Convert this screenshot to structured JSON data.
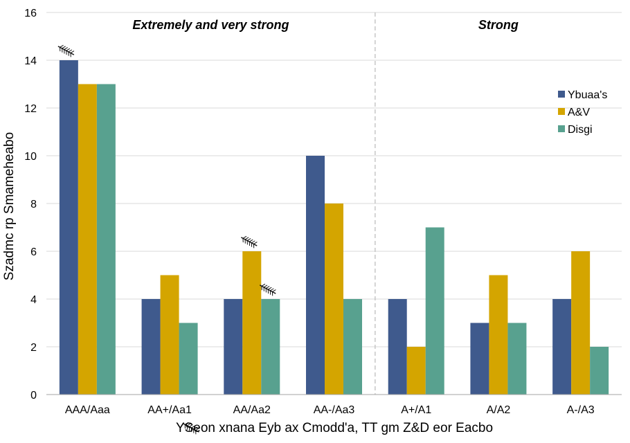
{
  "chart_data": {
    "type": "bar",
    "ylabel": "Szadmc rp Smameheabo",
    "xlabel": "YSeon xnana Eyb ax Cmodd'a, TT gm Z&D eor Eacbo",
    "ylim": [
      0,
      16
    ],
    "yticks": [
      0,
      2,
      4,
      6,
      8,
      10,
      12,
      14,
      16
    ],
    "categories": [
      "AAA/Aaa",
      "AA+/Aa1",
      "AA/Aa2",
      "AA-/Aa3",
      "A+/A1",
      "A/A2",
      "A-/A3"
    ],
    "series": [
      {
        "name": "Ybuaa's",
        "color": "#3f5a8d",
        "values": [
          14,
          4,
          4,
          10,
          4,
          3,
          4
        ]
      },
      {
        "name": "A&V",
        "color": "#d4a500",
        "values": [
          13,
          5,
          6,
          8,
          2,
          5,
          6
        ]
      },
      {
        "name": "Disgi",
        "color": "#58a18f",
        "values": [
          13,
          3,
          4,
          4,
          7,
          3,
          2
        ]
      }
    ],
    "groups": [
      {
        "label": "Extremely and very strong",
        "from": 0,
        "to": 3
      },
      {
        "label": "Strong",
        "from": 4,
        "to": 6
      }
    ],
    "divider_after_category": 3,
    "legend_position": "right",
    "grid": true,
    "markers": [
      {
        "category": 0,
        "series": 0
      },
      {
        "category": 2,
        "series": 1
      },
      {
        "category": 2,
        "series": 2
      }
    ]
  }
}
